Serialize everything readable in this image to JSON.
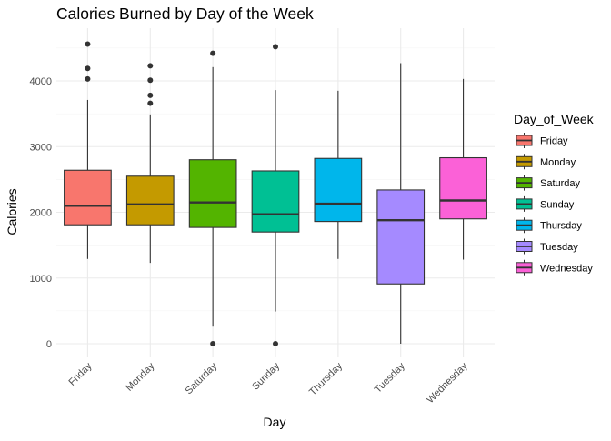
{
  "chart_data": {
    "type": "box",
    "title": "Calories Burned by Day of the Week",
    "xlabel": "Day",
    "ylabel": "Calories",
    "ylim": [
      -200,
      4750
    ],
    "yticks": [
      0,
      1000,
      2000,
      3000,
      4000
    ],
    "grid": true,
    "legend": {
      "title": "Day_of_Week",
      "placement": "right"
    },
    "categories": [
      "Friday",
      "Monday",
      "Saturday",
      "Sunday",
      "Thursday",
      "Tuesday",
      "Wednesday"
    ],
    "series": [
      {
        "name": "Friday",
        "color": "#F8766D",
        "whisker_low": 1290,
        "q1": 1810,
        "median": 2100,
        "q3": 2640,
        "whisker_high": 3710,
        "outliers": [
          4030,
          4190,
          4560
        ]
      },
      {
        "name": "Monday",
        "color": "#C49A00",
        "whisker_low": 1230,
        "q1": 1810,
        "median": 2120,
        "q3": 2550,
        "whisker_high": 3490,
        "outliers": [
          3660,
          3780,
          4010,
          4230
        ]
      },
      {
        "name": "Saturday",
        "color": "#53B400",
        "whisker_low": 260,
        "q1": 1770,
        "median": 2150,
        "q3": 2800,
        "whisker_high": 4210,
        "outliers": [
          0,
          4420
        ]
      },
      {
        "name": "Sunday",
        "color": "#00C094",
        "whisker_low": 490,
        "q1": 1700,
        "median": 1970,
        "q3": 2630,
        "whisker_high": 3860,
        "outliers": [
          0,
          4520
        ]
      },
      {
        "name": "Thursday",
        "color": "#00B6EB",
        "whisker_low": 1290,
        "q1": 1860,
        "median": 2130,
        "q3": 2820,
        "whisker_high": 3850,
        "outliers": []
      },
      {
        "name": "Tuesday",
        "color": "#A58AFF",
        "whisker_low": 0,
        "q1": 910,
        "median": 1880,
        "q3": 2340,
        "whisker_high": 4270,
        "outliers": []
      },
      {
        "name": "Wednesday",
        "color": "#FB61D7",
        "whisker_low": 1280,
        "q1": 1900,
        "median": 2180,
        "q3": 2830,
        "whisker_high": 4030,
        "outliers": []
      }
    ]
  }
}
